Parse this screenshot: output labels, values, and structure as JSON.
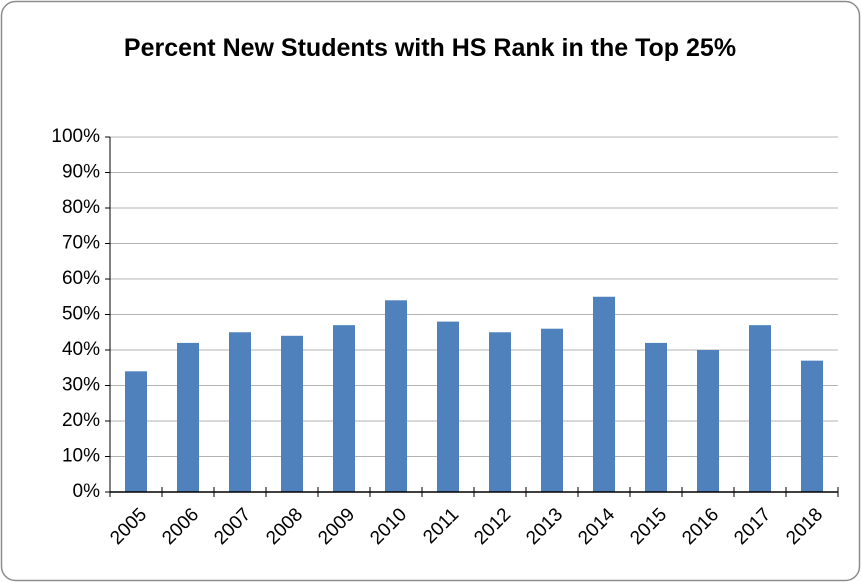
{
  "chart_data": {
    "type": "bar",
    "title": "Percent New Students with HS Rank in the Top 25%",
    "categories": [
      "2005",
      "2006",
      "2007",
      "2008",
      "2009",
      "2010",
      "2011",
      "2012",
      "2013",
      "2014",
      "2015",
      "2016",
      "2017",
      "2018"
    ],
    "values": [
      34,
      42,
      45,
      44,
      47,
      54,
      48,
      45,
      46,
      55,
      42,
      40,
      47,
      37
    ],
    "color": "#4f81bd",
    "ylim": [
      0,
      100
    ],
    "yticks": [
      {
        "value": 0,
        "label": "0%"
      },
      {
        "value": 10,
        "label": "10%"
      },
      {
        "value": 20,
        "label": "20%"
      },
      {
        "value": 30,
        "label": "30%"
      },
      {
        "value": 40,
        "label": "40%"
      },
      {
        "value": 50,
        "label": "50%"
      },
      {
        "value": 60,
        "label": "60%"
      },
      {
        "value": 70,
        "label": "70%"
      },
      {
        "value": 80,
        "label": "80%"
      },
      {
        "value": 90,
        "label": "90%"
      },
      {
        "value": 100,
        "label": "100%"
      }
    ],
    "grid": true
  }
}
